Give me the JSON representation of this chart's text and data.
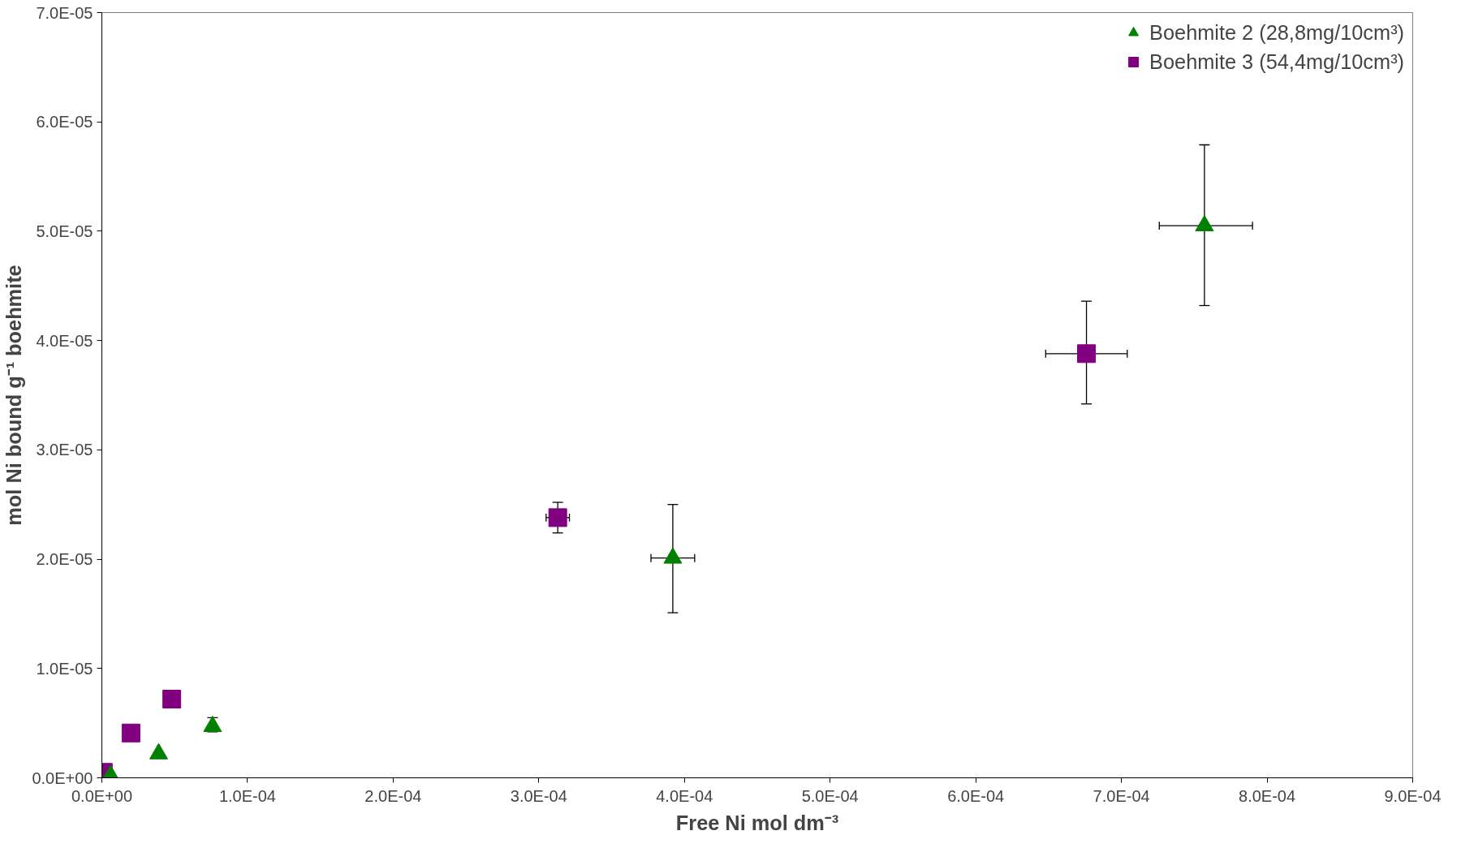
{
  "chart_data": {
    "type": "scatter",
    "xlabel": "Free Ni mol dm⁻³",
    "ylabel": "mol Ni bound g⁻¹ boehmite",
    "xlim": [
      0,
      0.0009
    ],
    "ylim": [
      0,
      7e-05
    ],
    "xticks": [
      {
        "value": 0,
        "label": "0.0E+00"
      },
      {
        "value": 0.0001,
        "label": "1.0E-04"
      },
      {
        "value": 0.0002,
        "label": "2.0E-04"
      },
      {
        "value": 0.0003,
        "label": "3.0E-04"
      },
      {
        "value": 0.0004,
        "label": "4.0E-04"
      },
      {
        "value": 0.0005,
        "label": "5.0E-04"
      },
      {
        "value": 0.0006,
        "label": "6.0E-04"
      },
      {
        "value": 0.0007,
        "label": "7.0E-04"
      },
      {
        "value": 0.0008,
        "label": "8.0E-04"
      },
      {
        "value": 0.0009,
        "label": "9.0E-04"
      }
    ],
    "yticks": [
      {
        "value": 0,
        "label": "0.0E+00"
      },
      {
        "value": 1e-05,
        "label": "1.0E-05"
      },
      {
        "value": 2e-05,
        "label": "2.0E-05"
      },
      {
        "value": 3e-05,
        "label": "3.0E-05"
      },
      {
        "value": 4e-05,
        "label": "4.0E-05"
      },
      {
        "value": 5e-05,
        "label": "5.0E-05"
      },
      {
        "value": 6e-05,
        "label": "6.0E-05"
      },
      {
        "value": 7e-05,
        "label": "7.0E-05"
      }
    ],
    "grid": false,
    "legend": "top right",
    "series": [
      {
        "name": "Boehmite 2 (28,8mg/10cm³)",
        "color": "#008000",
        "marker": "triangle",
        "x": [
          6e-06,
          3.9e-05,
          7.6e-05,
          0.000392,
          0.000757
        ],
        "values": [
          2e-07,
          2.2e-06,
          4.7e-06,
          2.01e-05,
          5.05e-05
        ],
        "errors": [
          null,
          null,
          [
            4.2e-06,
            5.5e-06
          ],
          [
            1.51e-05,
            2.5e-05
          ],
          [
            4.32e-05,
            5.79e-05
          ]
        ],
        "xerrors": [
          null,
          null,
          null,
          [
            0.000377,
            0.000407
          ],
          [
            0.000726,
            0.00079
          ]
        ]
      },
      {
        "name": "Boehmite 3 (54,4mg/10cm³)",
        "color": "#800080",
        "marker": "square",
        "x": [
          1e-06,
          2e-05,
          4.8e-05,
          0.000313,
          0.000676
        ],
        "values": [
          5e-07,
          4.1e-06,
          7.2e-06,
          2.38e-05,
          3.88e-05
        ],
        "errors": [
          null,
          null,
          null,
          [
            2.24e-05,
            2.52e-05
          ],
          [
            3.42e-05,
            4.36e-05
          ]
        ],
        "xerrors": [
          null,
          null,
          null,
          [
            0.000305,
            0.000321
          ],
          [
            0.000648,
            0.000704
          ]
        ]
      }
    ]
  }
}
